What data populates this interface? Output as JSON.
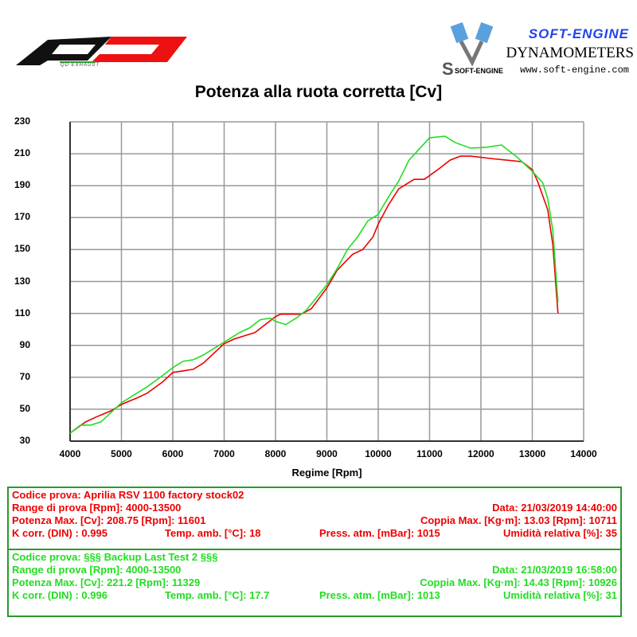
{
  "header": {
    "brand_left": "QD EXHAUST",
    "brand_right": "SOFT-ENGINE",
    "subtitle_right": "DYNAMOMETERS",
    "url": "www.soft-engine.com",
    "logo_text": "SOFT-ENGINE"
  },
  "chart_data": {
    "type": "line",
    "title": "Potenza alla ruota corretta [Cv]",
    "xlabel": "Regime [Rpm]",
    "ylabel": "",
    "xlim": [
      4000,
      14000
    ],
    "ylim": [
      30,
      230
    ],
    "xticks": [
      4000,
      5000,
      6000,
      7000,
      8000,
      9000,
      10000,
      11000,
      12000,
      13000,
      14000
    ],
    "yticks": [
      30,
      50,
      70,
      90,
      110,
      130,
      150,
      170,
      190,
      210,
      230
    ],
    "grid": true,
    "series": [
      {
        "name": "Aprilia RSV 1100 factory stock02",
        "color": "#ee0000",
        "x": [
          4000,
          4300,
          4500,
          4800,
          5000,
          5300,
          5500,
          5800,
          6000,
          6200,
          6400,
          6600,
          6800,
          7000,
          7200,
          7400,
          7600,
          7800,
          8000,
          8100,
          8500,
          8700,
          9000,
          9200,
          9500,
          9700,
          9900,
          10000,
          10200,
          10400,
          10700,
          10900,
          11200,
          11400,
          11600,
          11800,
          12200,
          12800,
          13000,
          13100,
          13300,
          13400,
          13500
        ],
        "y": [
          35,
          42,
          45,
          49,
          53,
          57,
          60,
          67,
          73,
          74,
          75,
          79,
          85,
          91,
          94,
          96,
          98,
          103,
          108,
          109.5,
          109.5,
          113,
          126,
          137,
          147,
          150,
          158,
          166,
          178,
          188,
          194,
          194,
          201,
          206,
          208.5,
          208.5,
          207,
          205,
          200,
          193,
          175,
          153,
          110
        ]
      },
      {
        "name": "§§§ Backup Last Test 2 §§§",
        "color": "#22dd22",
        "x": [
          4000,
          4200,
          4400,
          4600,
          4800,
          5000,
          5300,
          5500,
          5800,
          6000,
          6200,
          6400,
          6600,
          7000,
          7300,
          7500,
          7700,
          7900,
          8000,
          8200,
          8400,
          8600,
          8800,
          9000,
          9200,
          9400,
          9600,
          9800,
          10000,
          10200,
          10400,
          10600,
          10800,
          11000,
          11300,
          11500,
          11800,
          12100,
          12400,
          12700,
          13000,
          13200,
          13300,
          13400,
          13500
        ],
        "y": [
          35,
          40,
          40,
          42,
          48,
          54,
          60,
          64,
          71,
          76,
          80,
          81,
          84,
          92,
          98,
          101,
          106,
          107,
          105,
          103,
          107,
          112,
          120,
          128,
          138,
          150,
          158,
          168,
          172,
          183,
          193,
          206,
          213,
          220,
          221,
          217,
          213.5,
          214,
          215.5,
          208,
          199,
          192,
          182,
          162,
          117
        ]
      }
    ]
  },
  "tests": [
    {
      "codice": "Codice prova: Aprilia RSV 1100 factory stock02",
      "range": "Range di prova [Rpm]: 4000-13500",
      "data": "Data: 21/03/2019   14:40:00",
      "potenza": "Potenza Max. [Cv]: 208.75   [Rpm]: 11601",
      "coppia": "Coppia Max. [Kg·m]: 13.03   [Rpm]: 10711",
      "kcorr": "K corr. (DIN) : 0.995",
      "temp": "Temp. amb. [°C]: 18",
      "press": "Press. atm. [mBar]: 1015",
      "umid": "Umidità relativa [%]: 35"
    },
    {
      "codice": "Codice prova: §§§ Backup Last Test 2 §§§",
      "range": "Range di prova [Rpm]: 4000-13500",
      "data": "Data: 21/03/2019   16:58:00",
      "potenza": "Potenza Max. [Cv]: 221.2   [Rpm]: 11329",
      "coppia": "Coppia Max. [Kg·m]: 14.43   [Rpm]: 10926",
      "kcorr": "K corr. (DIN) : 0.996",
      "temp": "Temp. amb. [°C]: 17.7",
      "press": "Press. atm. [mBar]: 1013",
      "umid": "Umidità relativa [%]: 31"
    }
  ]
}
